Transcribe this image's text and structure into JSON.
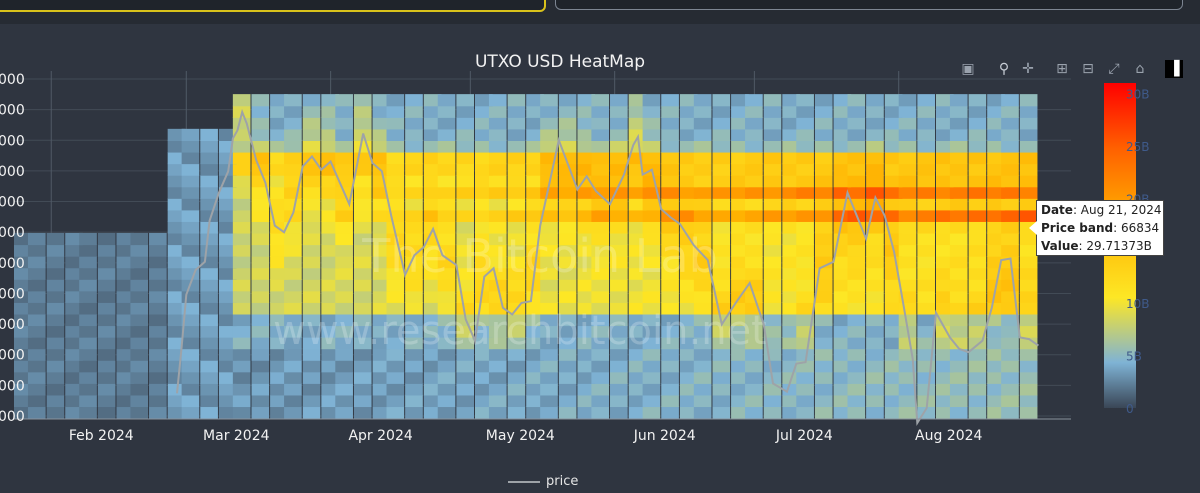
{
  "chart_data": {
    "type": "heatmap",
    "title": "UTXO USD HeatMap",
    "x_tick_labels": [
      "Feb 2024",
      "Mar 2024",
      "Apr 2024",
      "May 2024",
      "Jun 2024",
      "Jul 2024",
      "Aug 2024"
    ],
    "x_range": [
      "2024-01-24",
      "2024-09-07"
    ],
    "x_data_range": [
      "2024-03-12",
      "2024-08-31"
    ],
    "y_range": [
      54500,
      75600
    ],
    "price_band_range": [
      56000,
      73000
    ],
    "y_tick_labels": [
      "000",
      "000",
      "000",
      "000",
      "000",
      "000",
      "000",
      "000",
      "000",
      "000",
      "000",
      "000"
    ],
    "colorbar": {
      "tick_labels": [
        "30B",
        "25B",
        "20B",
        "15B",
        "10B",
        "5B",
        "0"
      ],
      "tick_values": [
        30,
        25,
        20,
        15,
        10,
        5,
        0
      ],
      "unit": "B",
      "range": [
        0,
        31
      ],
      "colors": [
        "#3a4656",
        "#7fb3d5",
        "#fde725",
        "#ffb000",
        "#ff6000",
        "#ff0000"
      ]
    },
    "price_series": {
      "name": "price",
      "color": "#9ea3a8",
      "points": [
        [
          "2024-02-28",
          56000
        ],
        [
          "2024-02-29",
          58800
        ],
        [
          "2024-03-01",
          62000
        ],
        [
          "2024-03-03",
          63500
        ],
        [
          "2024-03-05",
          64000
        ],
        [
          "2024-03-06",
          66500
        ],
        [
          "2024-03-08",
          68200
        ],
        [
          "2024-03-10",
          69500
        ],
        [
          "2024-03-11",
          71500
        ],
        [
          "2024-03-12",
          72000
        ],
        [
          "2024-03-13",
          73100
        ],
        [
          "2024-03-14",
          72400
        ],
        [
          "2024-03-16",
          70200
        ],
        [
          "2024-03-18",
          68800
        ],
        [
          "2024-03-20",
          66200
        ],
        [
          "2024-03-22",
          65800
        ],
        [
          "2024-03-24",
          67000
        ],
        [
          "2024-03-26",
          69800
        ],
        [
          "2024-03-28",
          70400
        ],
        [
          "2024-03-30",
          69600
        ],
        [
          "2024-04-01",
          70100
        ],
        [
          "2024-04-03",
          68800
        ],
        [
          "2024-04-05",
          67500
        ],
        [
          "2024-04-08",
          71800
        ],
        [
          "2024-04-10",
          70000
        ],
        [
          "2024-04-12",
          69500
        ],
        [
          "2024-04-14",
          66800
        ],
        [
          "2024-04-17",
          63200
        ],
        [
          "2024-04-19",
          64400
        ],
        [
          "2024-04-21",
          64900
        ],
        [
          "2024-04-23",
          66000
        ],
        [
          "2024-04-25",
          64400
        ],
        [
          "2024-04-28",
          63800
        ],
        [
          "2024-04-30",
          60500
        ],
        [
          "2024-05-02",
          59200
        ],
        [
          "2024-05-04",
          63100
        ],
        [
          "2024-05-06",
          63600
        ],
        [
          "2024-05-08",
          61200
        ],
        [
          "2024-05-10",
          60800
        ],
        [
          "2024-05-12",
          61500
        ],
        [
          "2024-05-14",
          61600
        ],
        [
          "2024-05-16",
          66200
        ],
        [
          "2024-05-20",
          71400
        ],
        [
          "2024-05-22",
          69900
        ],
        [
          "2024-05-24",
          68400
        ],
        [
          "2024-05-26",
          69200
        ],
        [
          "2024-05-28",
          68300
        ],
        [
          "2024-05-31",
          67500
        ],
        [
          "2024-06-03",
          69300
        ],
        [
          "2024-06-05",
          71100
        ],
        [
          "2024-06-06",
          71600
        ],
        [
          "2024-06-07",
          69300
        ],
        [
          "2024-06-09",
          69600
        ],
        [
          "2024-06-11",
          67200
        ],
        [
          "2024-06-13",
          66700
        ],
        [
          "2024-06-15",
          66300
        ],
        [
          "2024-06-18",
          65000
        ],
        [
          "2024-06-21",
          64100
        ],
        [
          "2024-06-24",
          60200
        ],
        [
          "2024-06-27",
          61500
        ],
        [
          "2024-06-30",
          62700
        ],
        [
          "2024-07-03",
          60200
        ],
        [
          "2024-07-05",
          56600
        ],
        [
          "2024-07-08",
          56100
        ],
        [
          "2024-07-10",
          57800
        ],
        [
          "2024-07-12",
          57900
        ],
        [
          "2024-07-15",
          63600
        ],
        [
          "2024-07-18",
          64000
        ],
        [
          "2024-07-21",
          68200
        ],
        [
          "2024-07-23",
          66800
        ],
        [
          "2024-07-25",
          65400
        ],
        [
          "2024-07-27",
          67900
        ],
        [
          "2024-07-29",
          66800
        ],
        [
          "2024-07-31",
          64600
        ],
        [
          "2024-08-02",
          61400
        ],
        [
          "2024-08-04",
          58100
        ],
        [
          "2024-08-05",
          54200
        ],
        [
          "2024-08-07",
          55100
        ],
        [
          "2024-08-09",
          60900
        ],
        [
          "2024-08-12",
          59400
        ],
        [
          "2024-08-14",
          58700
        ],
        [
          "2024-08-16",
          58500
        ],
        [
          "2024-08-19",
          59200
        ],
        [
          "2024-08-21",
          61200
        ],
        [
          "2024-08-23",
          64100
        ],
        [
          "2024-08-25",
          64200
        ],
        [
          "2024-08-27",
          59400
        ],
        [
          "2024-08-29",
          59300
        ],
        [
          "2024-08-31",
          58900
        ]
      ]
    },
    "legend": {
      "position": "bottom-center",
      "entries": [
        "price"
      ]
    },
    "watermark": [
      "The Bitcoin Lab",
      "www.researchbitcoin.net"
    ],
    "tooltip": {
      "date_label": "Date",
      "date": "Aug 21, 2024",
      "band_label": "Price band",
      "band": "66834",
      "value_label": "Value",
      "value": "29.71373B"
    }
  },
  "modebar": {
    "icons": [
      "camera-icon",
      "zoom-icon",
      "pan-icon",
      "zoom-in-icon",
      "zoom-out-icon",
      "autoscale-icon",
      "reset-axes-icon",
      "plotly-logo-icon"
    ]
  },
  "colors": {
    "background": "#2f3540",
    "plot_background": "#2f3540",
    "grid": "#505a66",
    "text": "#f2f2f2"
  }
}
